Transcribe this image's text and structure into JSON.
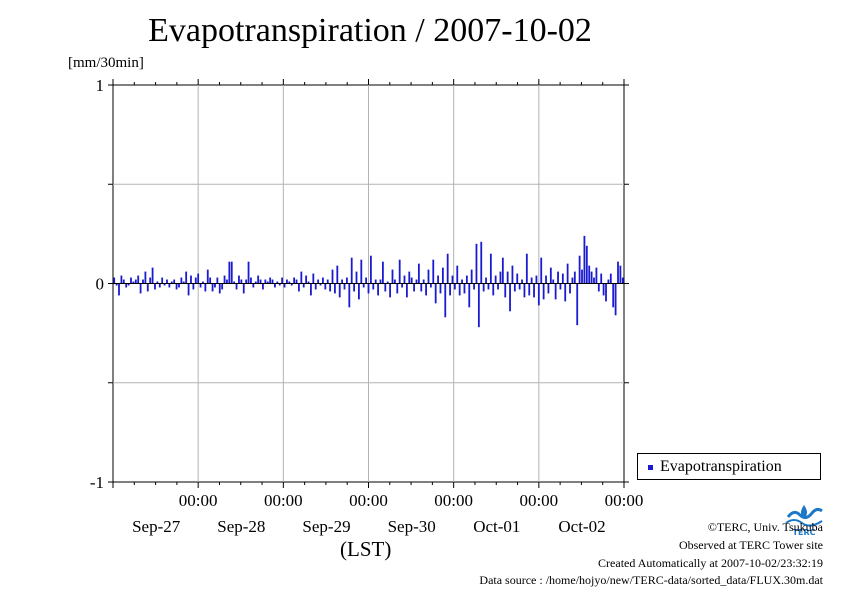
{
  "title": "Evapotranspiration / 2007-10-02",
  "y_unit": "[mm/30min]",
  "x_axis_label": "(LST)",
  "legend_label": "Evapotranspiration",
  "credits": {
    "copyright": "©TERC, Univ. Tsukuba",
    "observed": "Observed at TERC Tower site",
    "created": "Created Automatically at 2007-10-02/23:32:19",
    "source": "Data source : /home/hojyo/new/TERC-data/sorted_data/FLUX.30m.dat"
  },
  "logo_text": "TERC",
  "colors": {
    "series": "#1a1ad0",
    "grid": "#b4b4b4",
    "logo": "#1e78c8"
  },
  "chart_data": {
    "type": "bar",
    "title": "Evapotranspiration / 2007-10-02",
    "ylabel": "[mm/30min]",
    "xlabel": "(LST)",
    "ylim": [
      -1,
      1
    ],
    "yticks": [
      -1,
      0,
      1
    ],
    "xlim_days": [
      0,
      6
    ],
    "grid": true,
    "legend": "right",
    "xticks": [
      {
        "time": "00:00",
        "date": "Sep-27"
      },
      {
        "time": "00:00",
        "date": "Sep-28"
      },
      {
        "time": "00:00",
        "date": "Sep-29"
      },
      {
        "time": "00:00",
        "date": "Sep-30"
      },
      {
        "time": "00:00",
        "date": "Oct-01"
      },
      {
        "time": "00:00",
        "date": "Oct-02"
      }
    ],
    "series": [
      {
        "name": "Evapotranspiration",
        "interval": "30min",
        "values": [
          0.03,
          -0.01,
          -0.06,
          0.04,
          0.02,
          -0.02,
          -0.01,
          0.03,
          0.01,
          0.02,
          0.04,
          -0.05,
          0.02,
          0.06,
          -0.04,
          0.03,
          0.08,
          -0.03,
          0.01,
          -0.02,
          0.03,
          -0.01,
          0.02,
          -0.02,
          0.01,
          0.02,
          -0.03,
          -0.02,
          0.03,
          0.01,
          0.06,
          -0.06,
          0.04,
          -0.03,
          0.03,
          0.05,
          -0.02,
          0.01,
          -0.04,
          0.07,
          0.03,
          -0.04,
          -0.02,
          0.03,
          -0.05,
          -0.03,
          0.04,
          0.02,
          0.11,
          0.11,
          0.01,
          -0.03,
          0.04,
          0.02,
          -0.05,
          0.02,
          0.11,
          0.03,
          -0.02,
          0.01,
          0.04,
          0.02,
          -0.03,
          0.02,
          0.01,
          0.03,
          0.02,
          -0.02,
          0.01,
          -0.01,
          0.03,
          -0.02,
          0.02,
          0.01,
          -0.01,
          0.03,
          0.02,
          -0.04,
          0.06,
          -0.02,
          0.04,
          0.01,
          -0.06,
          0.05,
          -0.03,
          0.02,
          -0.01,
          0.03,
          -0.03,
          0.02,
          -0.04,
          0.07,
          -0.05,
          0.09,
          -0.07,
          0.02,
          -0.03,
          0.03,
          -0.12,
          0.13,
          -0.04,
          0.06,
          -0.08,
          0.12,
          -0.02,
          0.03,
          -0.05,
          0.14,
          -0.03,
          0.02,
          -0.06,
          0.02,
          0.11,
          -0.04,
          0.01,
          -0.07,
          0.07,
          0.02,
          -0.05,
          0.12,
          -0.02,
          0.04,
          -0.07,
          0.06,
          0.03,
          -0.04,
          0.02,
          0.1,
          -0.04,
          0.02,
          -0.06,
          0.07,
          -0.02,
          0.12,
          -0.1,
          0.04,
          -0.05,
          0.08,
          -0.17,
          0.15,
          -0.06,
          0.04,
          -0.03,
          0.09,
          -0.06,
          0.02,
          -0.05,
          0.04,
          -0.12,
          0.07,
          -0.03,
          0.2,
          -0.22,
          0.21,
          -0.04,
          0.03,
          -0.03,
          0.15,
          -0.06,
          0.04,
          -0.03,
          0.06,
          0.13,
          -0.07,
          0.06,
          -0.14,
          0.09,
          -0.04,
          0.05,
          -0.03,
          0.02,
          -0.07,
          0.15,
          -0.06,
          0.03,
          -0.07,
          0.04,
          -0.11,
          0.13,
          -0.08,
          0.04,
          -0.05,
          0.08,
          0.02,
          -0.08,
          0.06,
          -0.03,
          0.05,
          -0.09,
          0.1,
          -0.05,
          0.03,
          0.06,
          -0.21,
          0.14,
          0.07,
          0.24,
          0.19,
          0.09,
          0.06,
          0.03,
          0.08,
          -0.04,
          0.05,
          -0.06,
          -0.09,
          0.02,
          0.05,
          -0.12,
          -0.16,
          0.11,
          0.09,
          0.03
        ]
      }
    ]
  }
}
